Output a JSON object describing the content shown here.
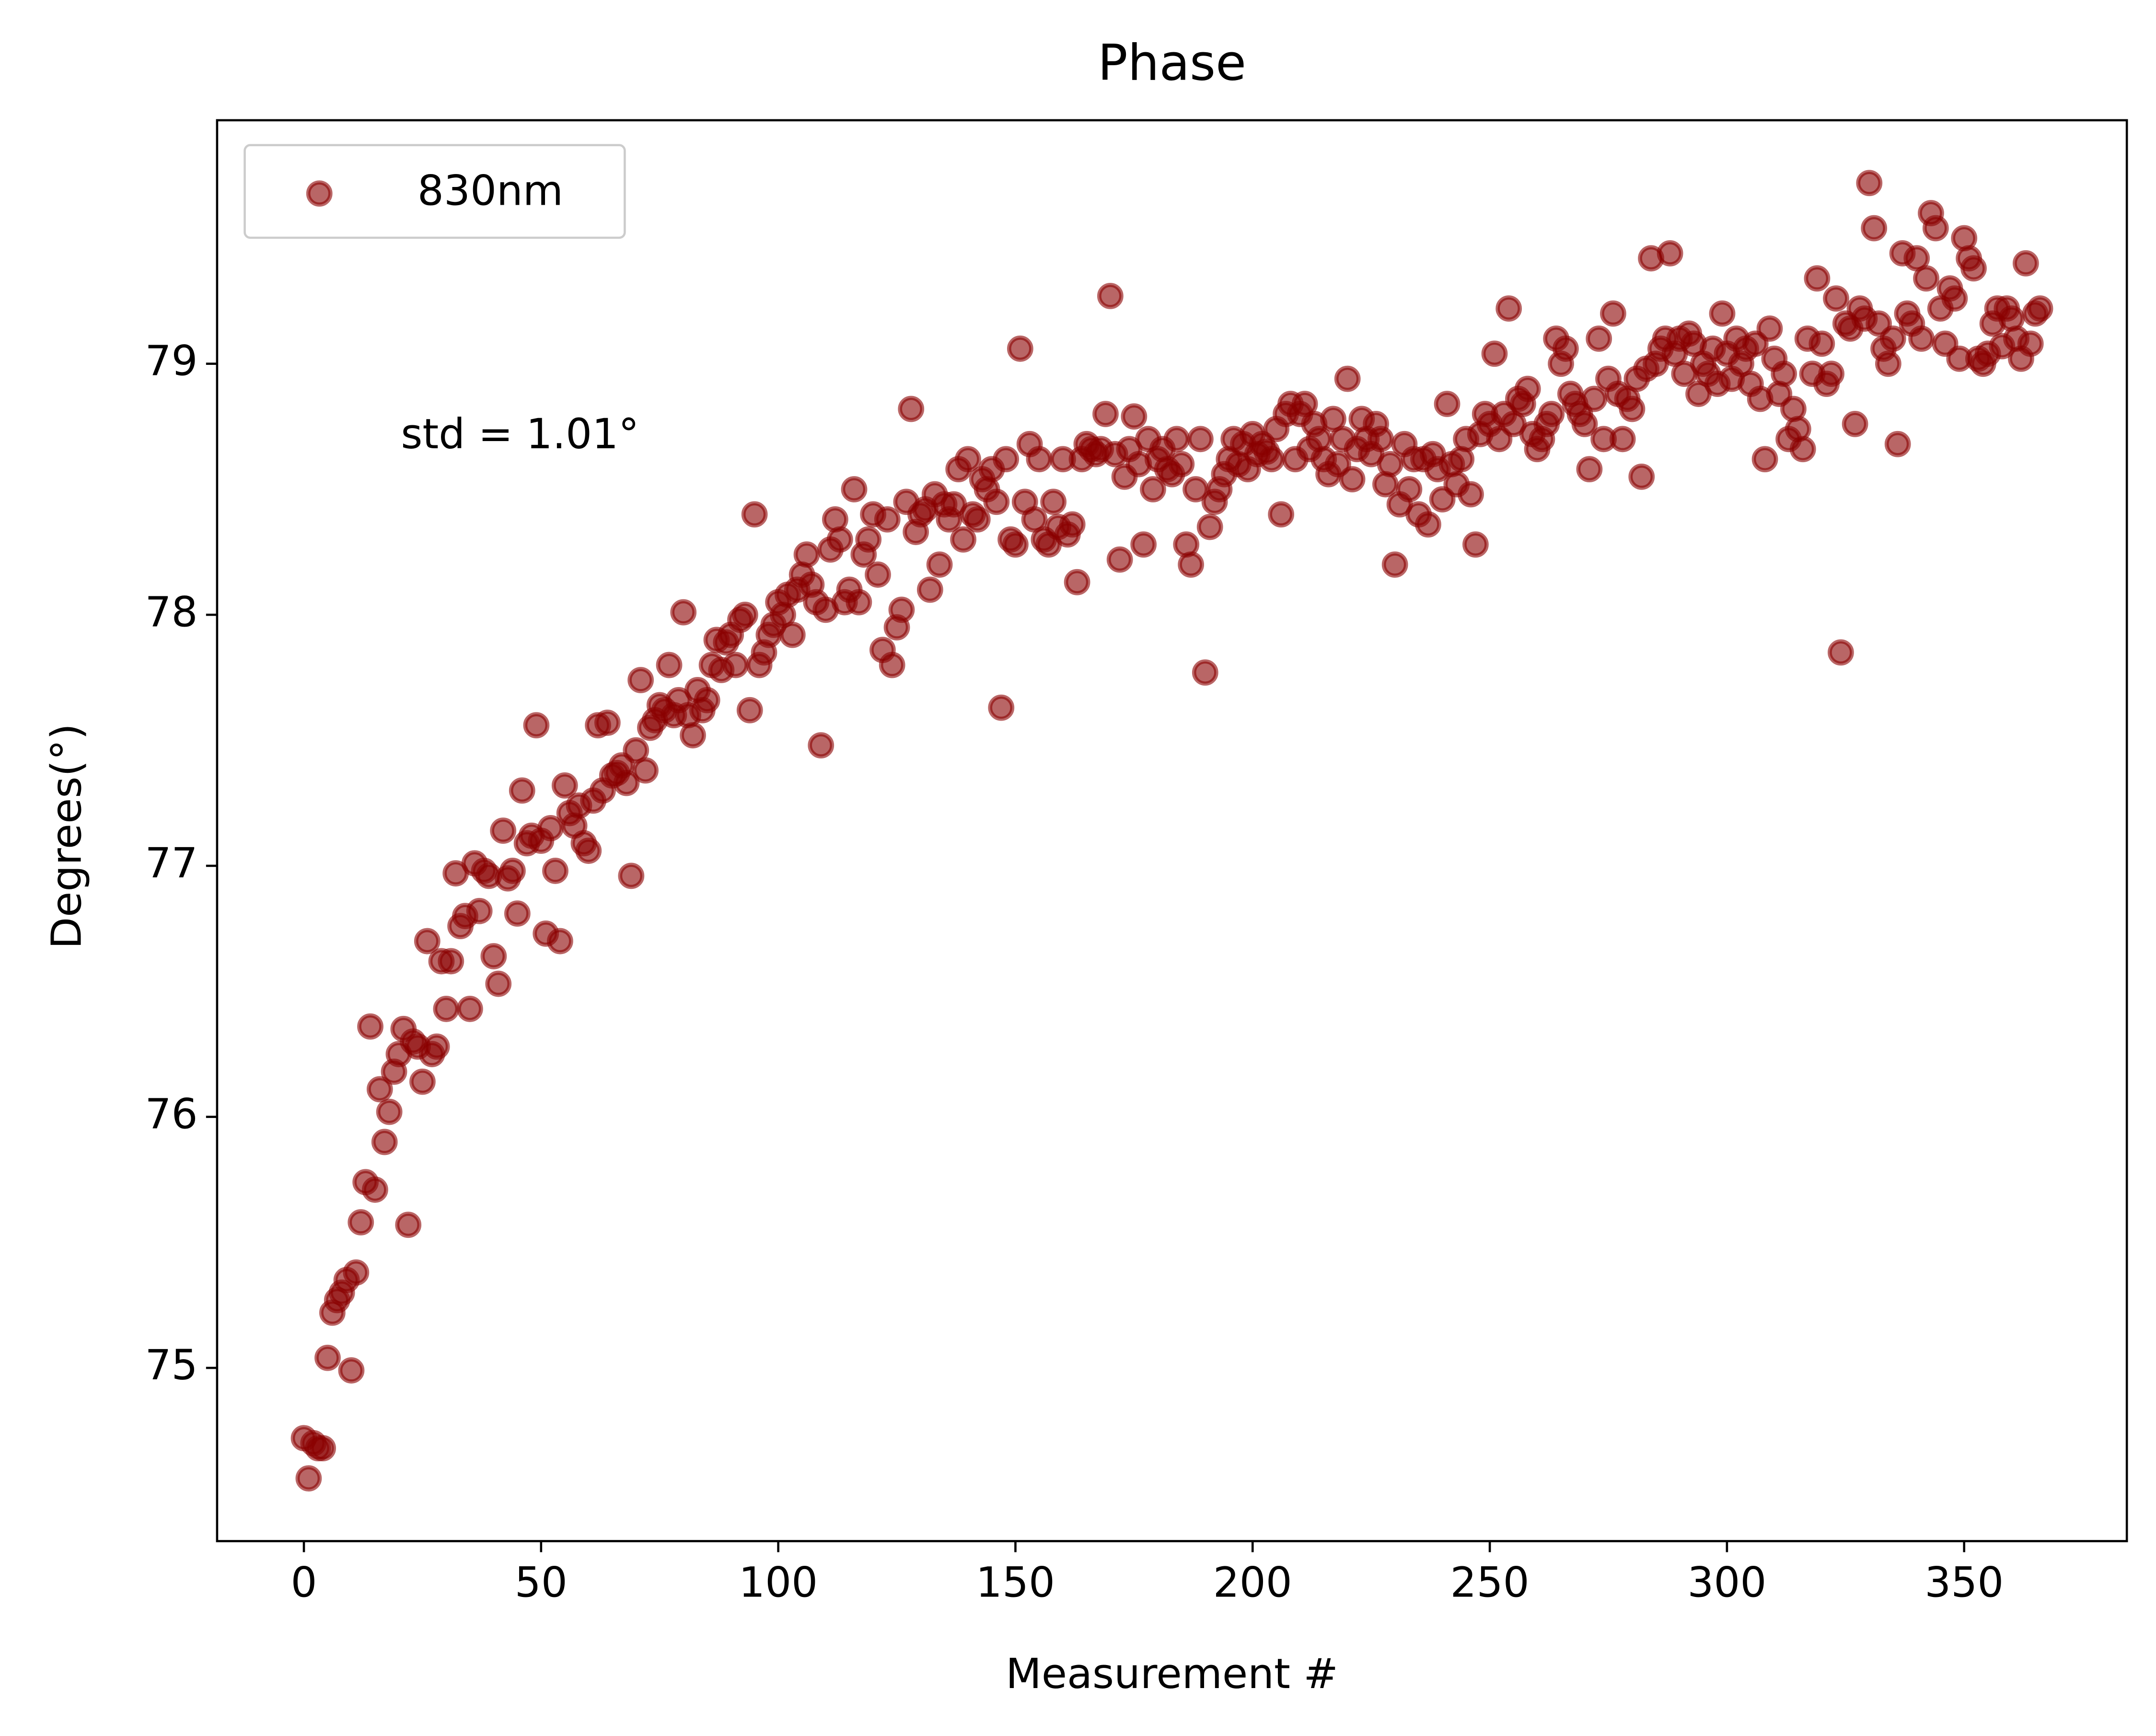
{
  "chart_data": {
    "type": "scatter",
    "title": "Phase",
    "xlabel": "Measurement #",
    "ylabel": "Degrees(°)",
    "annotation": "std = 1.01°",
    "legend": "upper left",
    "x": [
      0,
      1,
      2,
      3,
      4,
      5,
      6,
      7,
      8,
      9,
      10,
      11,
      12,
      13,
      14,
      15,
      16,
      17,
      18,
      19,
      20,
      21,
      22,
      23,
      24,
      25,
      26,
      27,
      28,
      29,
      30,
      31,
      32,
      33,
      34,
      35,
      36,
      37,
      38,
      39,
      40,
      41,
      42,
      43,
      44,
      45,
      46,
      47,
      48,
      49,
      50,
      51,
      52,
      53,
      54,
      55,
      56,
      57,
      58,
      59,
      60,
      61,
      62,
      63,
      64,
      65,
      66,
      67,
      68,
      69,
      70,
      71,
      72,
      73,
      74,
      75,
      76,
      77,
      78,
      79,
      80,
      81,
      82,
      83,
      84,
      85,
      86,
      87,
      88,
      89,
      90,
      91,
      92,
      93,
      94,
      95,
      96,
      97,
      98,
      99,
      100,
      101,
      102,
      103,
      104,
      105,
      106,
      107,
      108,
      109,
      110,
      111,
      112,
      113,
      114,
      115,
      116,
      117,
      118,
      119,
      120,
      121,
      122,
      123,
      124,
      125,
      126,
      127,
      128,
      129,
      130,
      131,
      132,
      133,
      134,
      135,
      136,
      137,
      138,
      139,
      140,
      141,
      142,
      143,
      144,
      145,
      146,
      147,
      148,
      149,
      150,
      151,
      152,
      153,
      154,
      155,
      156,
      157,
      158,
      159,
      160,
      161,
      162,
      163,
      164,
      165,
      166,
      167,
      168,
      169,
      170,
      171,
      172,
      173,
      174,
      175,
      176,
      177,
      178,
      179,
      180,
      181,
      182,
      183,
      184,
      185,
      186,
      187,
      188,
      189,
      190,
      191,
      192,
      193,
      194,
      195,
      196,
      197,
      198,
      199,
      200,
      201,
      202,
      203,
      204,
      205,
      206,
      207,
      208,
      209,
      210,
      211,
      212,
      213,
      214,
      215,
      216,
      217,
      218,
      219,
      220,
      221,
      222,
      223,
      224,
      225,
      226,
      227,
      228,
      229,
      230,
      231,
      232,
      233,
      234,
      235,
      236,
      237,
      238,
      239,
      240,
      241,
      242,
      243,
      244,
      245,
      246,
      247,
      248,
      249,
      250,
      251,
      252,
      253,
      254,
      255,
      256,
      257,
      258,
      259,
      260,
      261,
      262,
      263,
      264,
      265,
      266,
      267,
      268,
      269,
      270,
      271,
      272,
      273,
      274,
      275,
      276,
      277,
      278,
      279,
      280,
      281,
      282,
      283,
      284,
      285,
      286,
      287,
      288,
      289,
      290,
      291,
      292,
      293,
      294,
      295,
      296,
      297,
      298,
      299,
      300,
      301,
      302,
      303,
      304,
      305,
      306,
      307,
      308,
      309,
      310,
      311,
      312,
      313,
      314,
      315,
      316,
      317,
      318,
      319,
      320,
      321,
      322,
      323,
      324,
      325,
      326,
      327,
      328,
      329,
      330,
      331,
      332,
      333,
      334,
      335,
      336,
      337,
      338,
      339,
      340,
      341,
      342,
      343,
      344,
      345,
      346,
      347,
      348,
      349,
      350,
      351,
      352,
      353,
      354,
      355,
      356,
      357,
      358,
      359,
      360,
      361,
      362,
      363,
      364,
      365,
      366
    ],
    "series": [
      {
        "name": "830nm",
        "color": "#8b0000",
        "values": [
          74.72,
          74.56,
          74.7,
          74.68,
          74.68,
          75.04,
          75.22,
          75.27,
          75.3,
          75.35,
          74.99,
          75.38,
          75.58,
          75.74,
          76.36,
          75.71,
          76.11,
          75.9,
          76.02,
          76.18,
          76.25,
          76.35,
          75.57,
          76.3,
          76.28,
          76.14,
          76.7,
          76.25,
          76.28,
          76.62,
          76.43,
          76.62,
          76.97,
          76.76,
          76.8,
          76.43,
          77.01,
          76.82,
          76.98,
          76.96,
          76.64,
          76.53,
          77.14,
          76.95,
          76.98,
          76.81,
          77.3,
          77.09,
          77.12,
          77.56,
          77.1,
          76.73,
          77.15,
          76.98,
          76.7,
          77.32,
          77.21,
          77.16,
          77.24,
          77.09,
          77.06,
          77.26,
          77.56,
          77.3,
          77.57,
          77.36,
          77.37,
          77.4,
          77.33,
          76.96,
          77.46,
          77.74,
          77.38,
          77.55,
          77.58,
          77.64,
          77.62,
          77.8,
          77.6,
          77.66,
          78.01,
          77.6,
          77.52,
          77.7,
          77.62,
          77.66,
          77.8,
          77.9,
          77.78,
          77.89,
          77.92,
          77.8,
          77.98,
          78.0,
          77.62,
          78.4,
          77.8,
          77.85,
          77.92,
          77.96,
          78.05,
          78.0,
          78.08,
          77.92,
          78.1,
          78.16,
          78.24,
          78.12,
          78.05,
          77.48,
          78.02,
          78.26,
          78.38,
          78.3,
          78.05,
          78.1,
          78.5,
          78.05,
          78.24,
          78.3,
          78.4,
          78.16,
          77.86,
          78.38,
          77.8,
          77.95,
          78.02,
          78.45,
          78.82,
          78.33,
          78.4,
          78.42,
          78.1,
          78.48,
          78.2,
          78.44,
          78.38,
          78.44,
          78.58,
          78.3,
          78.62,
          78.4,
          78.38,
          78.54,
          78.5,
          78.58,
          78.45,
          77.63,
          78.62,
          78.3,
          78.28,
          79.06,
          78.45,
          78.68,
          78.38,
          78.62,
          78.3,
          78.28,
          78.45,
          78.35,
          78.62,
          78.32,
          78.36,
          78.13,
          78.62,
          78.68,
          78.66,
          78.64,
          78.66,
          78.8,
          79.27,
          78.64,
          78.22,
          78.55,
          78.66,
          78.79,
          78.6,
          78.28,
          78.7,
          78.5,
          78.62,
          78.66,
          78.58,
          78.56,
          78.7,
          78.6,
          78.28,
          78.2,
          78.5,
          78.7,
          77.77,
          78.35,
          78.45,
          78.5,
          78.56,
          78.62,
          78.7,
          78.6,
          78.68,
          78.58,
          78.72,
          78.64,
          78.68,
          78.65,
          78.62,
          78.74,
          78.4,
          78.8,
          78.84,
          78.62,
          78.8,
          78.84,
          78.66,
          78.76,
          78.7,
          78.62,
          78.56,
          78.78,
          78.6,
          78.7,
          78.94,
          78.54,
          78.66,
          78.78,
          78.7,
          78.64,
          78.76,
          78.7,
          78.52,
          78.6,
          78.2,
          78.44,
          78.68,
          78.5,
          78.62,
          78.4,
          78.62,
          78.36,
          78.64,
          78.58,
          78.46,
          78.84,
          78.6,
          78.52,
          78.62,
          78.7,
          78.48,
          78.28,
          78.72,
          78.8,
          78.76,
          79.04,
          78.7,
          78.8,
          79.22,
          78.76,
          78.86,
          78.84,
          78.9,
          78.72,
          78.66,
          78.7,
          78.76,
          78.8,
          79.1,
          79.0,
          79.06,
          78.88,
          78.84,
          78.8,
          78.76,
          78.58,
          78.86,
          79.1,
          78.7,
          78.94,
          79.2,
          78.88,
          78.7,
          78.86,
          78.82,
          78.94,
          78.55,
          78.98,
          79.42,
          79.0,
          79.06,
          79.1,
          79.44,
          79.04,
          79.1,
          78.96,
          79.12,
          79.08,
          78.88,
          79.0,
          78.96,
          79.06,
          78.92,
          79.2,
          79.04,
          78.94,
          79.1,
          79.0,
          79.06,
          78.92,
          79.08,
          78.86,
          78.62,
          79.14,
          79.02,
          78.88,
          78.96,
          78.7,
          78.82,
          78.74,
          78.66,
          79.1,
          78.96,
          79.34,
          79.08,
          78.92,
          78.96,
          79.26,
          77.85,
          79.16,
          79.14,
          78.76,
          79.22,
          79.18,
          79.72,
          79.54,
          79.16,
          79.06,
          79.0,
          79.1,
          78.68,
          79.44,
          79.2,
          79.16,
          79.42,
          79.1,
          79.34,
          79.6,
          79.54,
          79.22,
          79.08,
          79.3,
          79.26,
          79.02,
          79.5,
          79.42,
          79.38,
          79.02,
          79.0,
          79.04,
          79.16,
          79.22,
          79.07,
          79.22,
          79.18,
          79.1,
          79.02,
          79.4,
          79.08,
          79.2,
          79.22
        ]
      }
    ],
    "xlim": [
      -18.3,
      384.3
    ],
    "ylim": [
      74.31,
      79.97
    ],
    "xticks": [
      0,
      50,
      100,
      150,
      200,
      250,
      300,
      350
    ],
    "yticks": [
      75,
      76,
      77,
      78,
      79
    ]
  }
}
